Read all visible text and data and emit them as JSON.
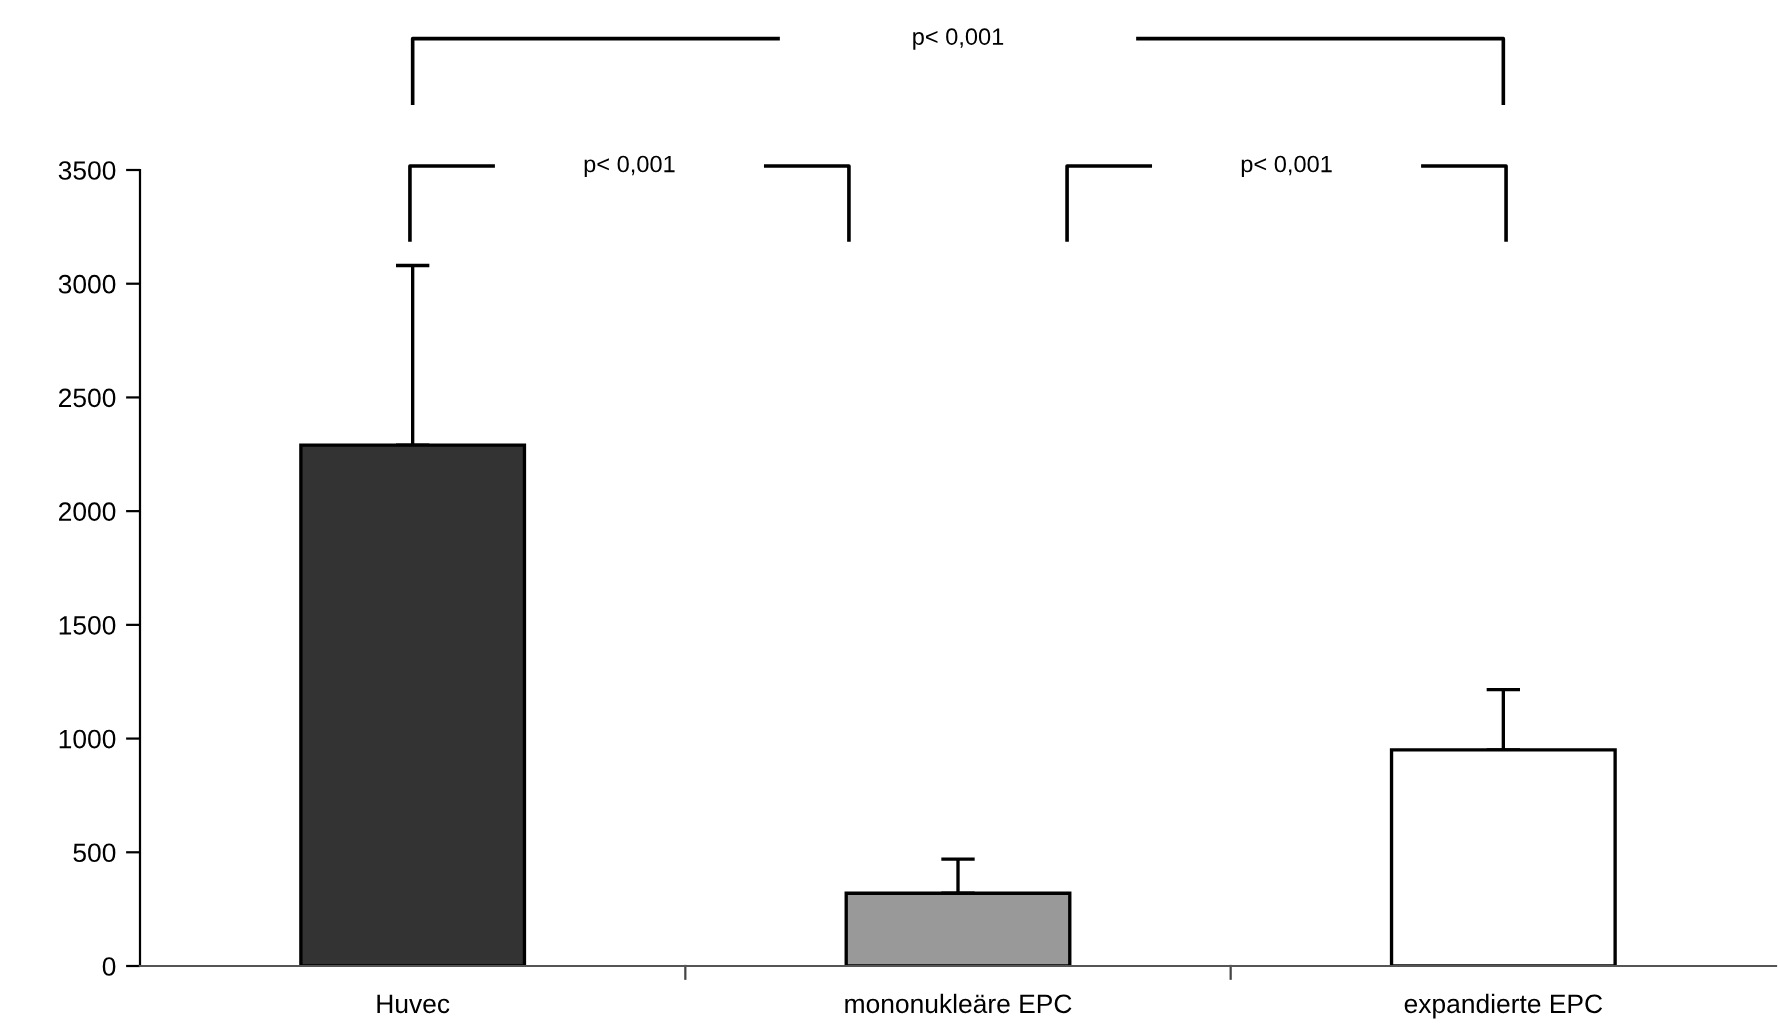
{
  "chart_data": {
    "type": "bar",
    "categories": [
      "Huvec",
      "mononukleäre EPC",
      "expandierte EPC"
    ],
    "values": [
      2290,
      320,
      950
    ],
    "colors": [
      "#333333",
      "#999999",
      "#ffffff"
    ],
    "errors": [
      [
        2290,
        3080
      ],
      [
        320,
        470
      ],
      [
        950,
        1215
      ]
    ],
    "ylim": [
      0,
      3500
    ],
    "yticks": [
      0,
      500,
      1000,
      1500,
      2000,
      2500,
      3000,
      3500
    ],
    "grid": false,
    "legend": false,
    "annotations": [
      "p< 0,001",
      "p< 0,001",
      "p< 0,001"
    ]
  }
}
